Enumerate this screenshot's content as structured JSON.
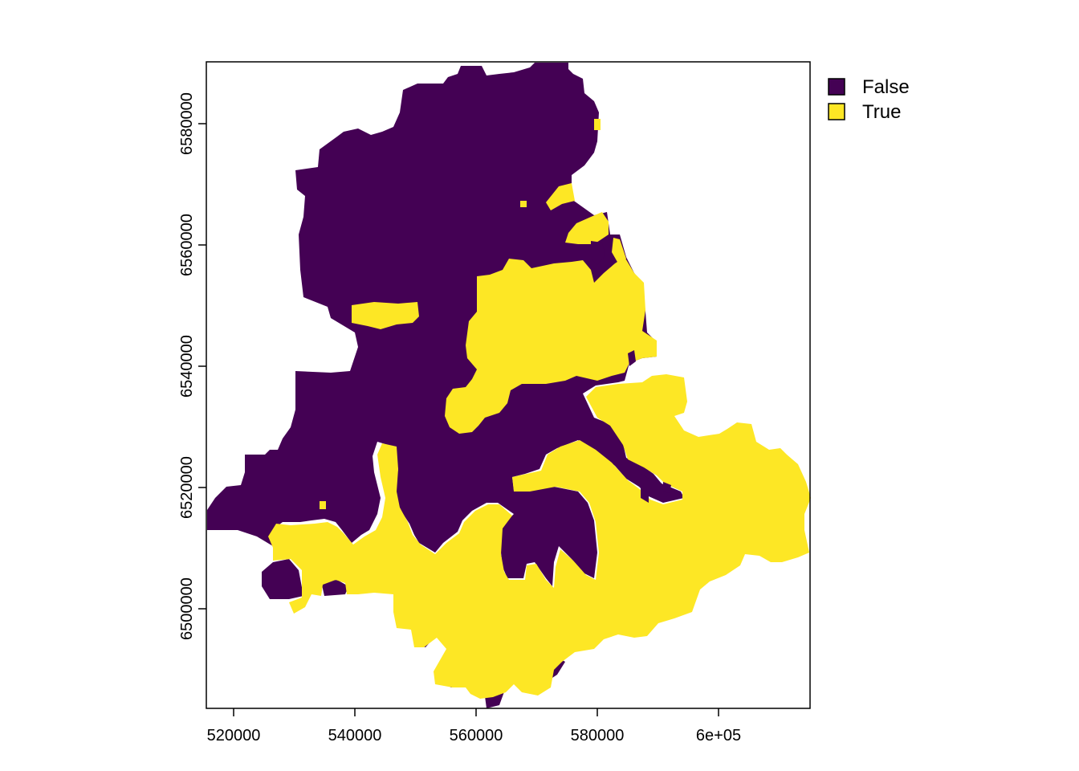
{
  "map": {
    "type": "raster",
    "x_ticks": [
      {
        "value": 520000,
        "label": "520000"
      },
      {
        "value": 540000,
        "label": "540000"
      },
      {
        "value": 560000,
        "label": "560000"
      },
      {
        "value": 580000,
        "label": "580000"
      },
      {
        "value": 600000,
        "label": "6e+05"
      }
    ],
    "y_ticks": [
      {
        "value": 6500000,
        "label": "6500000"
      },
      {
        "value": 6520000,
        "label": "6520000"
      },
      {
        "value": 6540000,
        "label": "6540000"
      },
      {
        "value": 6560000,
        "label": "6560000"
      },
      {
        "value": 6580000,
        "label": "6580000"
      }
    ],
    "legend": [
      {
        "label": "False",
        "color": "#440154"
      },
      {
        "label": "True",
        "color": "#FDE725"
      }
    ],
    "legend_position": "right"
  }
}
